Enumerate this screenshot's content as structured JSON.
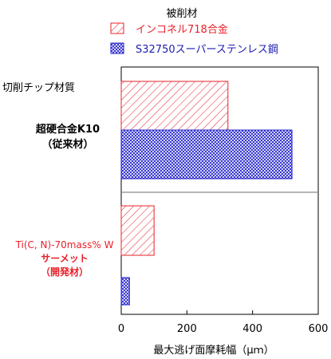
{
  "chart_data": {
    "type": "bar",
    "orientation": "horizontal",
    "legend": {
      "title": "被削材",
      "placement": "top",
      "entries": [
        {
          "label": "インコネル718合金",
          "color": "#e8202a",
          "text_color": "#e8202a",
          "pattern": "diagonal-hatch"
        },
        {
          "label": "S32750スーパーステンレス鋼",
          "color": "#1c1ccc",
          "text_color": "#1c1cb0",
          "pattern": "crosshatch"
        }
      ]
    },
    "y_header": "切削チップ材質",
    "groups": [
      {
        "name_lines": [
          "超硬合金K10",
          "（従来材）"
        ],
        "name_color": "#000000"
      },
      {
        "name_lines": [
          "Ti(C, N)-70mass% W",
          "サーメット",
          "（開発材）"
        ],
        "name_color": "#e8202a"
      }
    ],
    "series": [
      {
        "name": "インコネル718合金",
        "values": [
          325,
          100
        ]
      },
      {
        "name": "S32750スーパーステンレス鋼",
        "values": [
          520,
          25
        ]
      }
    ],
    "xlabel": "最大逃げ面摩耗幅（μｍ）",
    "x_ticks": [
      "0",
      "200",
      "400",
      "600"
    ],
    "xlim": [
      0,
      600
    ],
    "grid": false,
    "separator_line": true
  }
}
